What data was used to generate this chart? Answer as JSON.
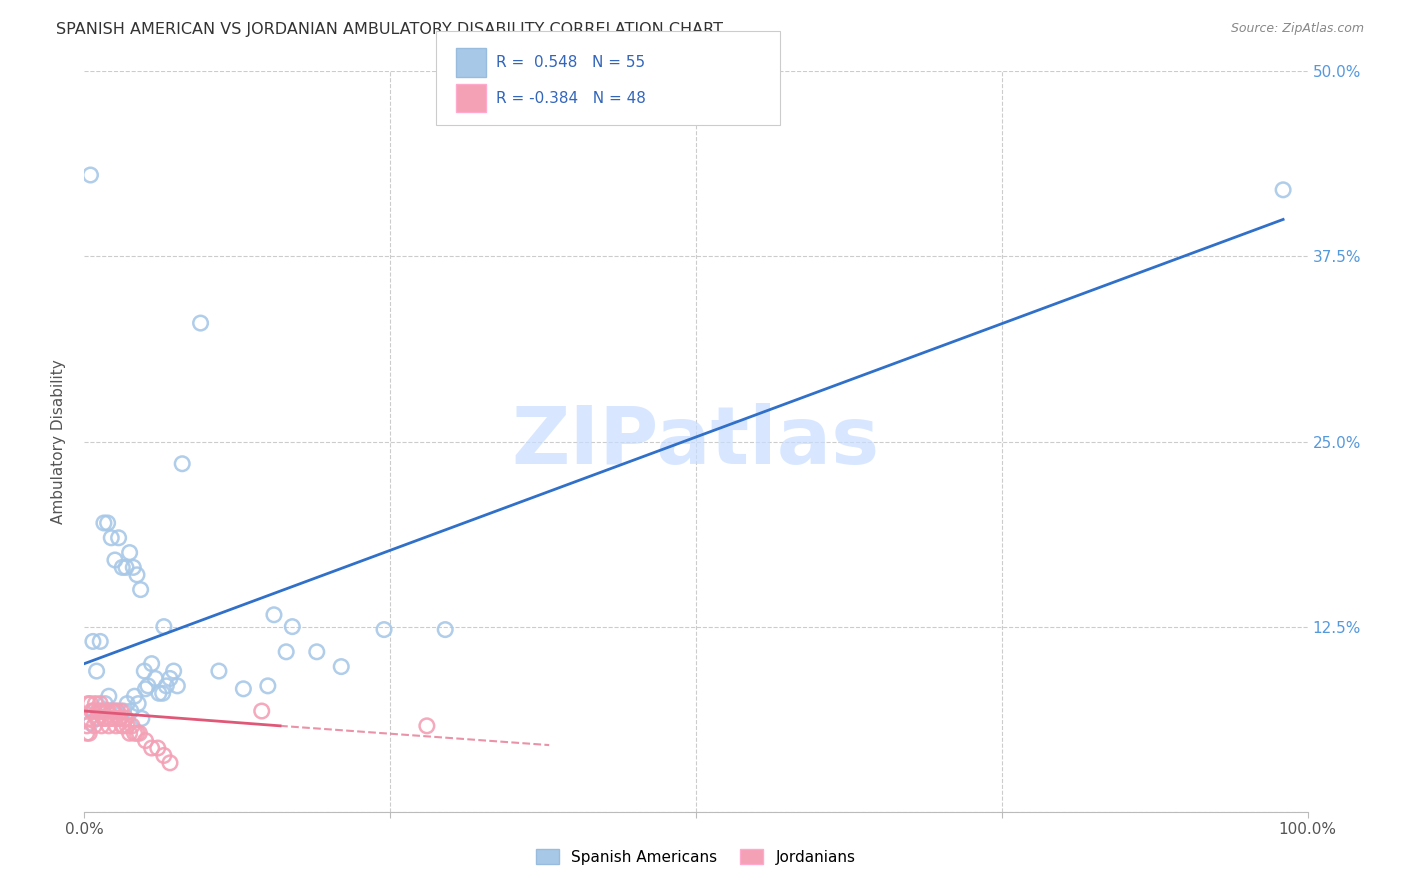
{
  "title": "SPANISH AMERICAN VS JORDANIAN AMBULATORY DISABILITY CORRELATION CHART",
  "source": "Source: ZipAtlas.com",
  "ylabel": "Ambulatory Disability",
  "watermark": "ZIPatlas",
  "xlim": [
    0,
    1.0
  ],
  "ylim": [
    0,
    0.5
  ],
  "xticks": [
    0.0,
    0.25,
    0.5,
    0.75,
    1.0
  ],
  "xticklabels": [
    "0.0%",
    "",
    "",
    "",
    "100.0%"
  ],
  "yticks": [
    0.0,
    0.125,
    0.25,
    0.375,
    0.5
  ],
  "yticklabels": [
    "",
    "12.5%",
    "25.0%",
    "37.5%",
    "50.0%"
  ],
  "blue_R": 0.548,
  "blue_N": 55,
  "pink_R": -0.384,
  "pink_N": 48,
  "blue_color": "#A8C8E8",
  "pink_color": "#F4A0B5",
  "blue_line_color": "#3070C8",
  "pink_line_color": "#E05878",
  "grid_color": "#CCCCCC",
  "bg_color": "#FFFFFF",
  "blue_line_x0": 0.0,
  "blue_line_y0": 0.1,
  "blue_line_x1": 0.98,
  "blue_line_y1": 0.4,
  "pink_line_x0": 0.0,
  "pink_line_y0": 0.068,
  "pink_line_x1_solid": 0.16,
  "pink_line_y1_solid": 0.058,
  "pink_line_x1_dash": 0.38,
  "pink_line_y1_dash": 0.045,
  "blue_scatter_x": [
    0.005,
    0.007,
    0.01,
    0.013,
    0.016,
    0.019,
    0.022,
    0.025,
    0.028,
    0.031,
    0.034,
    0.037,
    0.04,
    0.043,
    0.046,
    0.049,
    0.052,
    0.055,
    0.058,
    0.061,
    0.064,
    0.067,
    0.07,
    0.073,
    0.076,
    0.005,
    0.008,
    0.011,
    0.014,
    0.017,
    0.02,
    0.023,
    0.026,
    0.029,
    0.032,
    0.035,
    0.038,
    0.041,
    0.044,
    0.047,
    0.05,
    0.065,
    0.08,
    0.095,
    0.11,
    0.13,
    0.15,
    0.17,
    0.19,
    0.21,
    0.155,
    0.295,
    0.165,
    0.245,
    0.98
  ],
  "blue_scatter_y": [
    0.43,
    0.115,
    0.095,
    0.115,
    0.195,
    0.195,
    0.185,
    0.17,
    0.185,
    0.165,
    0.165,
    0.175,
    0.165,
    0.16,
    0.15,
    0.095,
    0.085,
    0.1,
    0.09,
    0.08,
    0.08,
    0.085,
    0.09,
    0.095,
    0.085,
    0.06,
    0.068,
    0.063,
    0.068,
    0.073,
    0.078,
    0.068,
    0.068,
    0.063,
    0.068,
    0.073,
    0.068,
    0.078,
    0.073,
    0.063,
    0.083,
    0.125,
    0.235,
    0.33,
    0.095,
    0.083,
    0.085,
    0.125,
    0.108,
    0.098,
    0.133,
    0.123,
    0.108,
    0.123,
    0.42
  ],
  "pink_scatter_x": [
    0.002,
    0.004,
    0.006,
    0.008,
    0.01,
    0.012,
    0.014,
    0.016,
    0.018,
    0.02,
    0.022,
    0.024,
    0.026,
    0.028,
    0.03,
    0.032,
    0.034,
    0.003,
    0.005,
    0.007,
    0.009,
    0.011,
    0.013,
    0.015,
    0.017,
    0.019,
    0.021,
    0.023,
    0.025,
    0.027,
    0.029,
    0.031,
    0.033,
    0.035,
    0.037,
    0.039,
    0.041,
    0.043,
    0.045,
    0.05,
    0.055,
    0.06,
    0.065,
    0.07,
    0.002,
    0.004,
    0.145,
    0.28
  ],
  "pink_scatter_y": [
    0.058,
    0.063,
    0.068,
    0.058,
    0.063,
    0.068,
    0.058,
    0.063,
    0.068,
    0.058,
    0.063,
    0.068,
    0.058,
    0.063,
    0.068,
    0.058,
    0.063,
    0.073,
    0.073,
    0.068,
    0.073,
    0.068,
    0.073,
    0.068,
    0.063,
    0.068,
    0.063,
    0.068,
    0.063,
    0.068,
    0.063,
    0.058,
    0.063,
    0.058,
    0.053,
    0.058,
    0.053,
    0.053,
    0.053,
    0.048,
    0.043,
    0.043,
    0.038,
    0.033,
    0.053,
    0.053,
    0.068,
    0.058
  ]
}
